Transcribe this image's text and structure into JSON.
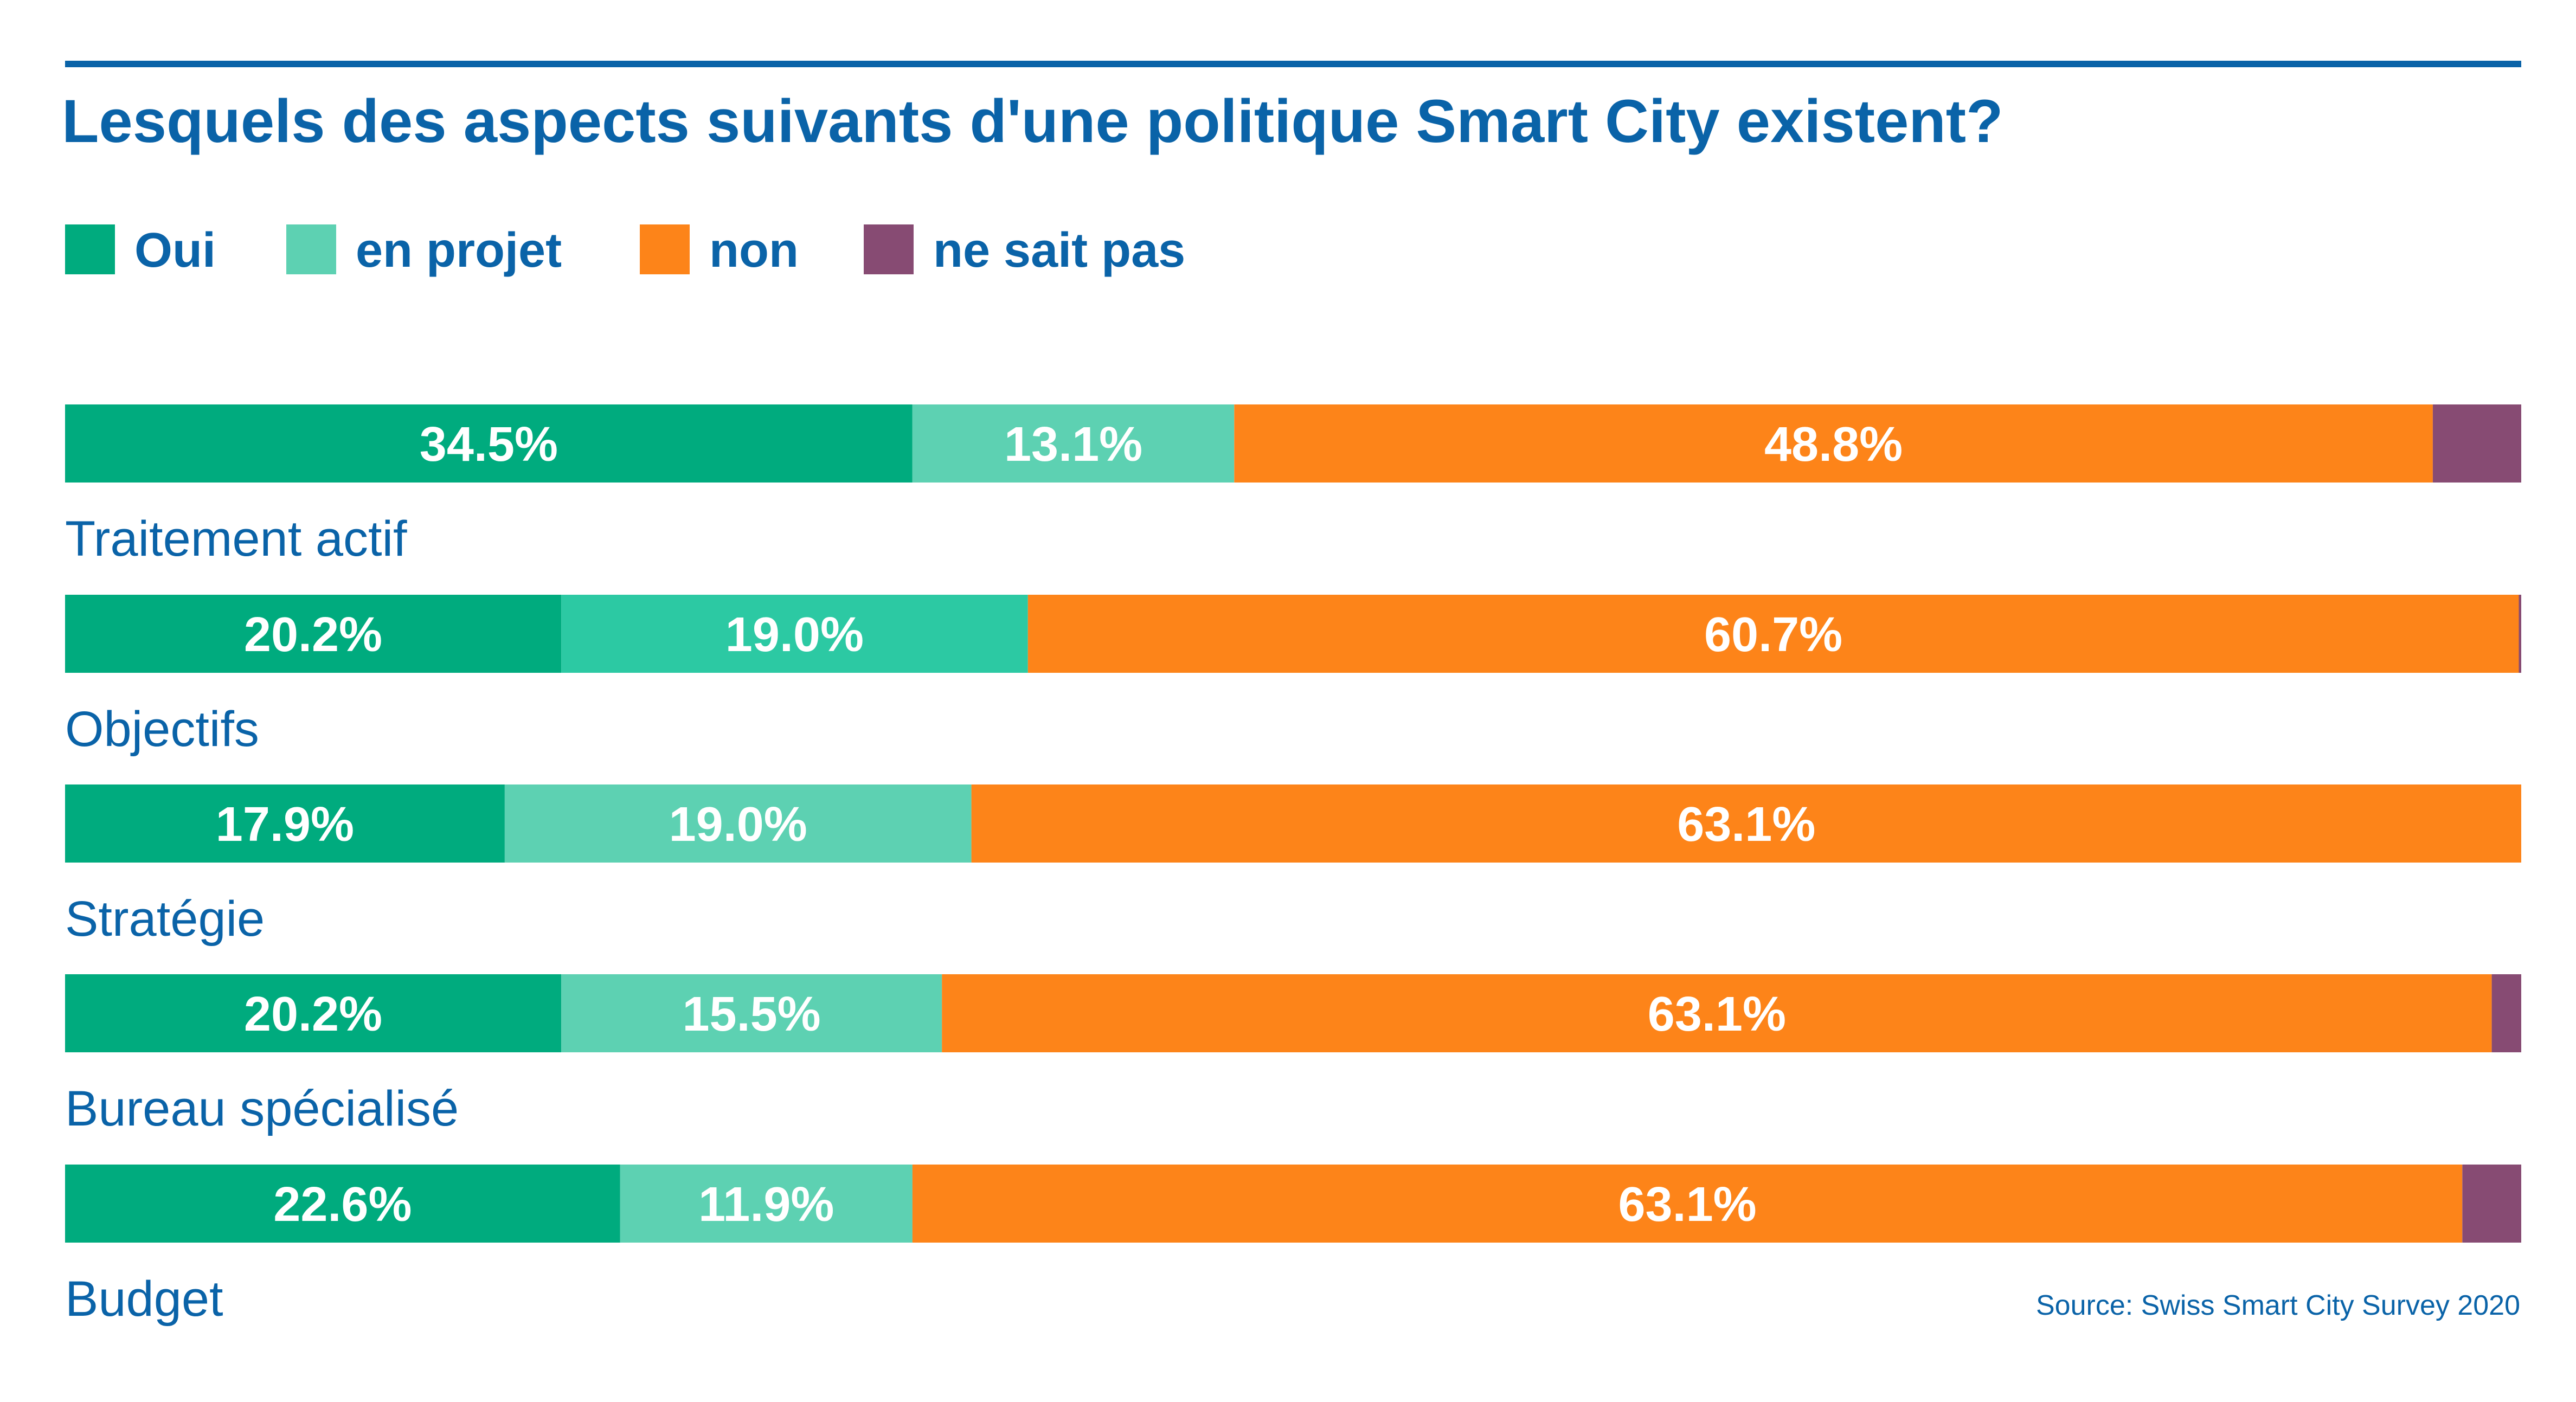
{
  "chart_data": {
    "type": "bar",
    "orientation": "horizontal",
    "stacked": true,
    "title": "Lesquels des aspects suivants d'une politique Smart City existent?",
    "source": "Source: Swiss Smart City Survey 2020",
    "legend_position": "top-left",
    "grid": false,
    "xlim": [
      0,
      100
    ],
    "unit": "%",
    "categories": [
      "Traitement actif",
      "Objectifs",
      "Stratégie",
      "Bureau spécialisé",
      "Budget"
    ],
    "series": [
      {
        "name": "Oui",
        "color": "#00ab7e",
        "values": [
          34.5,
          20.2,
          17.9,
          20.2,
          22.6
        ]
      },
      {
        "name": "en projet",
        "color": "#5dd1b2",
        "values": [
          13.1,
          19.0,
          19.0,
          15.5,
          11.9
        ]
      },
      {
        "name": "non",
        "color": "#fd8419",
        "values": [
          48.8,
          60.7,
          63.1,
          63.1,
          63.1
        ]
      },
      {
        "name": "ne sait pas",
        "color": "#874b73",
        "values": [
          3.6,
          0.1,
          0.0,
          1.2,
          2.4
        ]
      }
    ],
    "data_labels": [
      [
        "34.5%",
        "13.1%",
        "48.8%",
        ""
      ],
      [
        "20.2%",
        "19.0%",
        "60.7%",
        ""
      ],
      [
        "17.9%",
        "19.0%",
        "63.1%",
        ""
      ],
      [
        "20.2%",
        "15.5%",
        "63.1%",
        ""
      ],
      [
        "22.6%",
        "11.9%",
        "63.1%",
        ""
      ]
    ]
  },
  "colors": {
    "accent": "#0a63a8",
    "objectifs_en_projet": "#2cc9a3"
  }
}
